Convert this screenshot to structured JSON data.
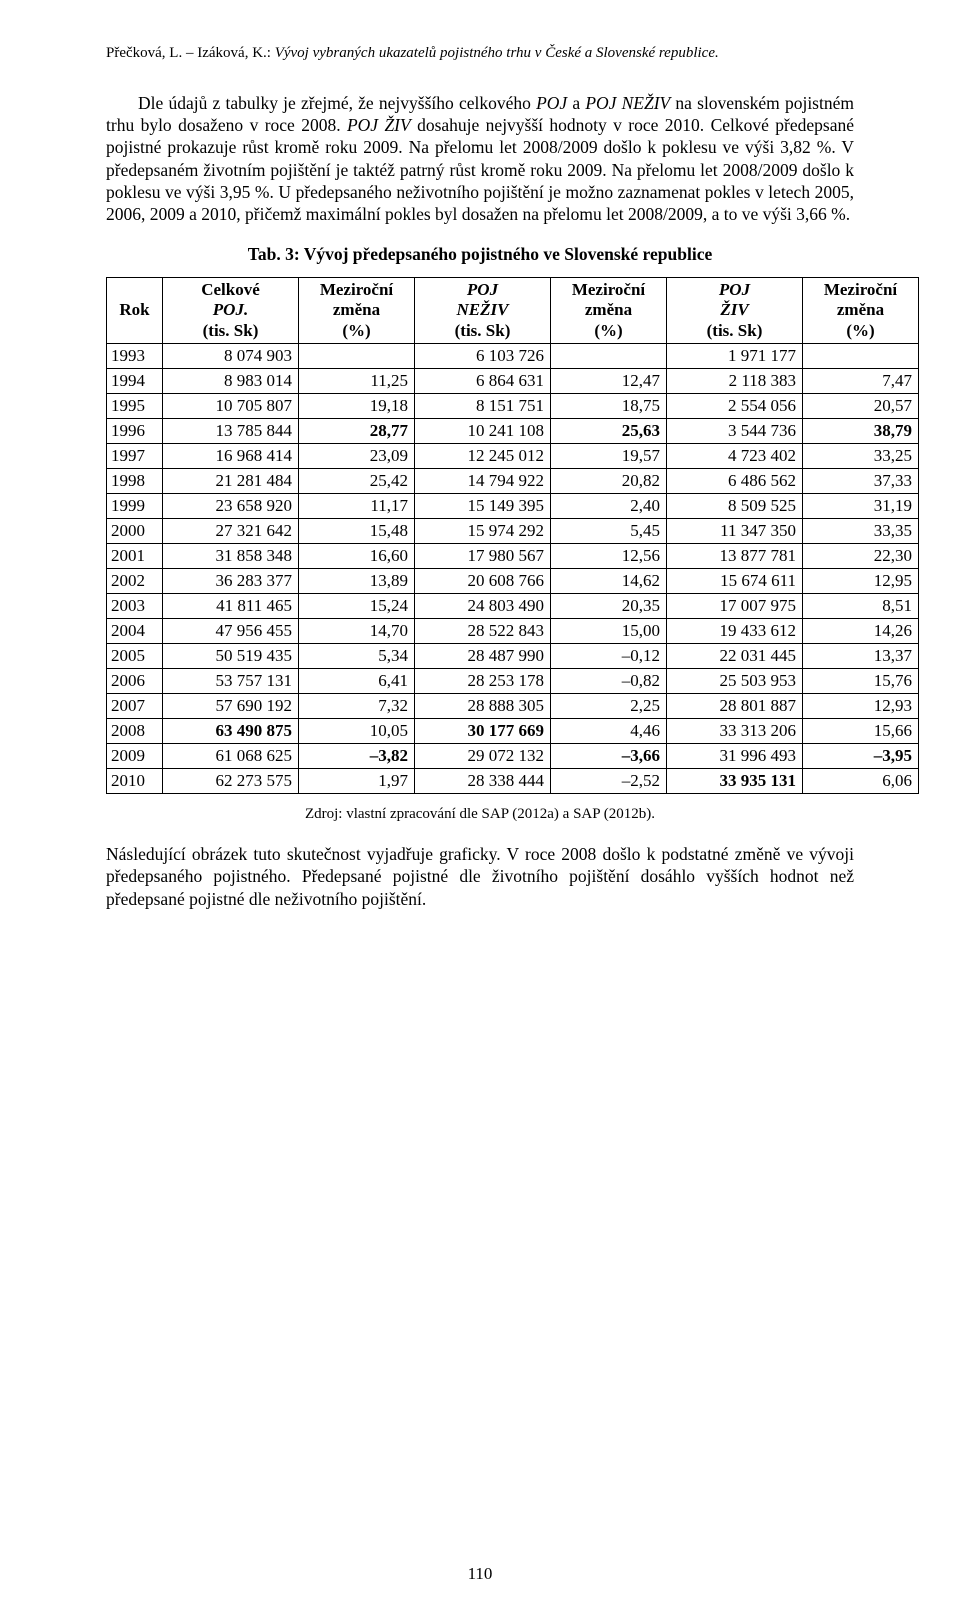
{
  "running_head": {
    "authors": "Přečková, L. – Izáková, K.: ",
    "title_italic": "Vývoj vybraných ukazatelů pojistného trhu v České a Slovenské republice."
  },
  "para1_parts": [
    {
      "t": "Dle údajů z tabulky je zřejmé, že nejvyššího celkového ",
      "i": false
    },
    {
      "t": "POJ",
      "i": true
    },
    {
      "t": " a ",
      "i": false
    },
    {
      "t": "POJ NEŽIV",
      "i": true
    },
    {
      "t": " na slovenském pojistném trhu bylo dosaženo v roce 2008. ",
      "i": false
    },
    {
      "t": "POJ ŽIV",
      "i": true
    },
    {
      "t": " dosahuje nejvyšší hodnoty v roce 2010. Celkové předepsané pojistné prokazuje růst kromě roku 2009. Na přelomu let 2008/2009 došlo k poklesu ve výši 3,82 %. V předepsaném životním pojištění je taktéž patrný růst kromě roku 2009. Na přelomu let 2008/2009 došlo k poklesu ve výši 3,95 %. U předepsaného neživotního pojištění je možno zaznamenat pokles v letech 2005, 2006, 2009 a 2010, přičemž maximální pokles byl dosažen na přelomu let 2008/2009, a to ve výši 3,66 %.",
      "i": false
    }
  ],
  "table": {
    "title": "Tab. 3: Vývoj předepsaného pojistného ve Slovenské republice",
    "headers": {
      "rok": "Rok",
      "celk_l1": "Celkové",
      "celk_l2_i": "POJ.",
      "celk_l3": "(tis. Sk)",
      "mz": "Meziroční\nzměna\n(%)",
      "neziv_l1_i": "POJ",
      "neziv_l2_i": "NEŽIV",
      "neziv_l3": "(tis. Sk)",
      "ziv_l1_i": "POJ",
      "ziv_l2_i": "ŽIV",
      "ziv_l3": "(tis. Sk)"
    },
    "rows": [
      {
        "year": "1993",
        "a": "8 074 903",
        "b": "",
        "c": "6 103 726",
        "d": "",
        "e": "1 971 177",
        "f": "",
        "bold_cols": []
      },
      {
        "year": "1994",
        "a": "8 983 014",
        "b": "11,25",
        "c": "6 864 631",
        "d": "12,47",
        "e": "2 118 383",
        "f": "7,47",
        "bold_cols": []
      },
      {
        "year": "1995",
        "a": "10 705 807",
        "b": "19,18",
        "c": "8 151 751",
        "d": "18,75",
        "e": "2 554 056",
        "f": "20,57",
        "bold_cols": []
      },
      {
        "year": "1996",
        "a": "13 785 844",
        "b": "28,77",
        "c": "10 241 108",
        "d": "25,63",
        "e": "3 544 736",
        "f": "38,79",
        "bold_cols": [
          "b",
          "d",
          "f"
        ]
      },
      {
        "year": "1997",
        "a": "16 968 414",
        "b": "23,09",
        "c": "12 245 012",
        "d": "19,57",
        "e": "4 723 402",
        "f": "33,25",
        "bold_cols": []
      },
      {
        "year": "1998",
        "a": "21 281 484",
        "b": "25,42",
        "c": "14 794 922",
        "d": "20,82",
        "e": "6 486 562",
        "f": "37,33",
        "bold_cols": []
      },
      {
        "year": "1999",
        "a": "23 658 920",
        "b": "11,17",
        "c": "15 149 395",
        "d": "2,40",
        "e": "8 509 525",
        "f": "31,19",
        "bold_cols": []
      },
      {
        "year": "2000",
        "a": "27 321 642",
        "b": "15,48",
        "c": "15 974 292",
        "d": "5,45",
        "e": "11 347 350",
        "f": "33,35",
        "bold_cols": []
      },
      {
        "year": "2001",
        "a": "31 858 348",
        "b": "16,60",
        "c": "17 980 567",
        "d": "12,56",
        "e": "13 877 781",
        "f": "22,30",
        "bold_cols": []
      },
      {
        "year": "2002",
        "a": "36 283 377",
        "b": "13,89",
        "c": "20 608 766",
        "d": "14,62",
        "e": "15 674 611",
        "f": "12,95",
        "bold_cols": []
      },
      {
        "year": "2003",
        "a": "41 811 465",
        "b": "15,24",
        "c": "24 803 490",
        "d": "20,35",
        "e": "17 007 975",
        "f": "8,51",
        "bold_cols": []
      },
      {
        "year": "2004",
        "a": "47 956 455",
        "b": "14,70",
        "c": "28 522 843",
        "d": "15,00",
        "e": "19 433 612",
        "f": "14,26",
        "bold_cols": []
      },
      {
        "year": "2005",
        "a": "50 519 435",
        "b": "5,34",
        "c": "28 487 990",
        "d": "–0,12",
        "e": "22 031 445",
        "f": "13,37",
        "bold_cols": []
      },
      {
        "year": "2006",
        "a": "53 757 131",
        "b": "6,41",
        "c": "28 253 178",
        "d": "–0,82",
        "e": "25 503 953",
        "f": "15,76",
        "bold_cols": []
      },
      {
        "year": "2007",
        "a": "57 690 192",
        "b": "7,32",
        "c": "28 888 305",
        "d": "2,25",
        "e": "28 801 887",
        "f": "12,93",
        "bold_cols": []
      },
      {
        "year": "2008",
        "a": "63 490 875",
        "b": "10,05",
        "c": "30 177 669",
        "d": "4,46",
        "e": "33 313 206",
        "f": "15,66",
        "bold_cols": [
          "a",
          "c"
        ]
      },
      {
        "year": "2009",
        "a": "61 068 625",
        "b": "–3,82",
        "c": "29 072 132",
        "d": "–3,66",
        "e": "31 996 493",
        "f": "–3,95",
        "bold_cols": [
          "b",
          "d",
          "f"
        ]
      },
      {
        "year": "2010",
        "a": "62 273 575",
        "b": "1,97",
        "c": "28 338 444",
        "d": "–2,52",
        "e": "33 935 131",
        "f": "6,06",
        "bold_cols": [
          "e"
        ]
      }
    ],
    "source": "Zdroj: vlastní zpracování dle SAP (2012a) a SAP (2012b)."
  },
  "para2": "Následující obrázek tuto skutečnost vyjadřuje graficky. V roce 2008 došlo k podstatné změně ve vývoji předepsaného pojistného. Předepsané pojistné dle životního pojištění dosáhlo vyšších hodnot než předepsané pojistné dle neživotního pojištění.",
  "page_number": "110"
}
